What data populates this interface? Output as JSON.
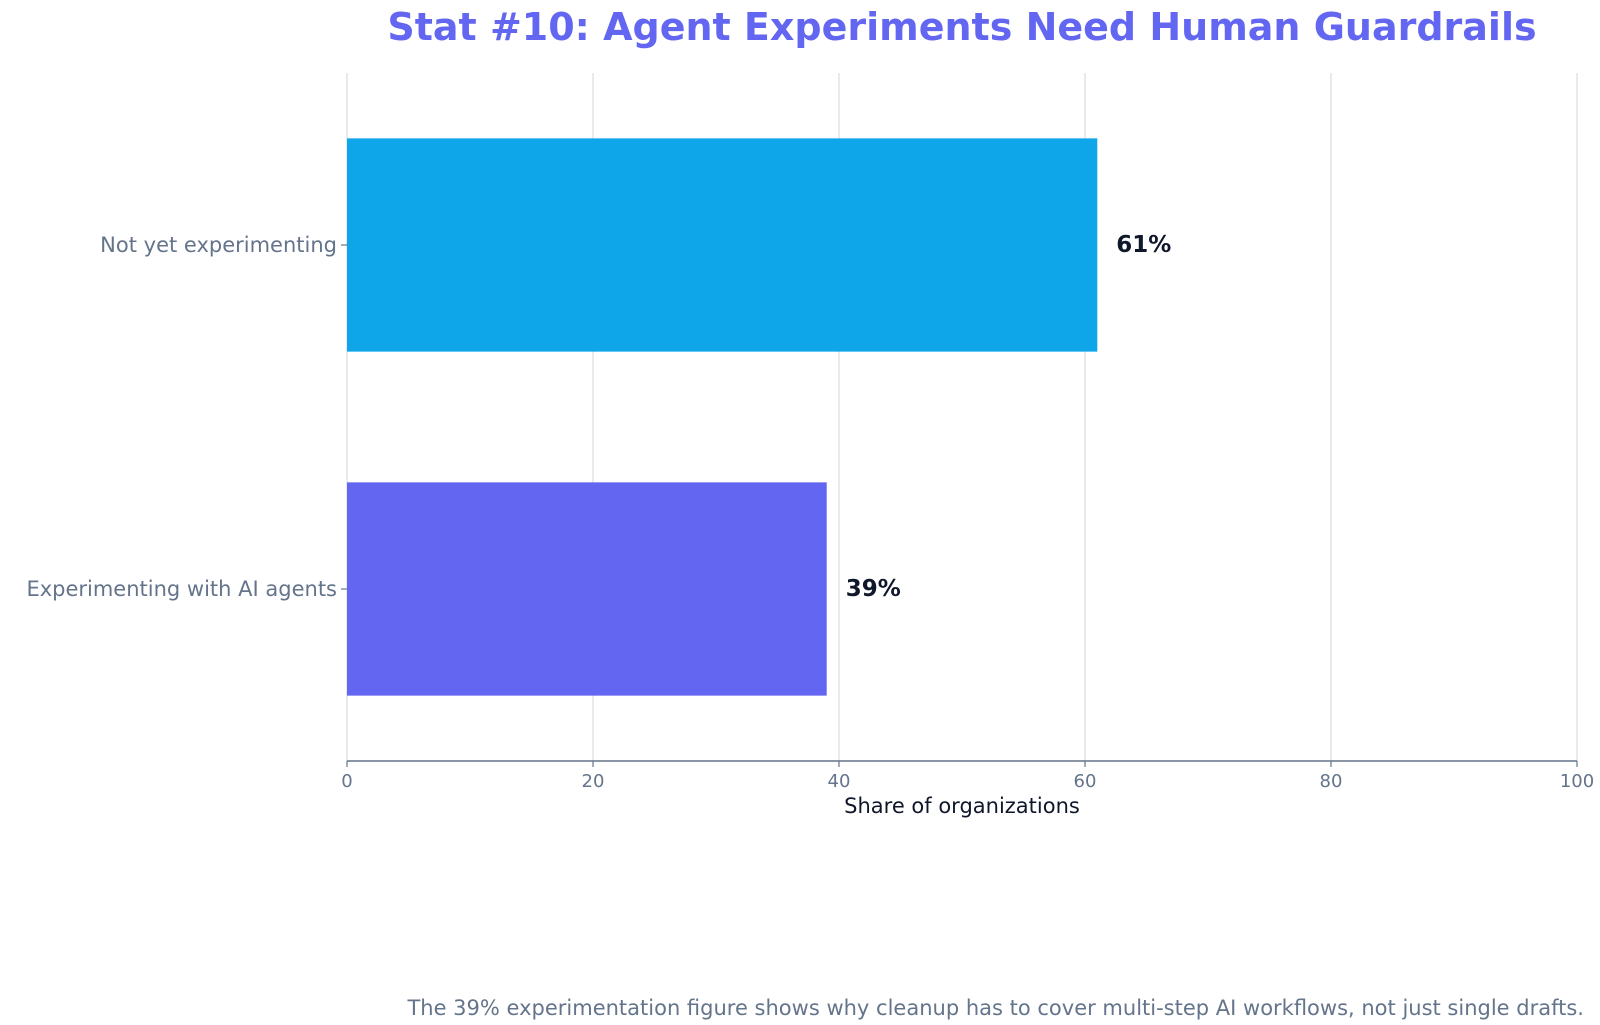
{
  "chart_data": {
    "type": "bar",
    "orientation": "horizontal",
    "title": "Stat #10: Agent Experiments Need Human Guardrails",
    "xlabel": "Share of organizations",
    "ylabel": "",
    "categories": [
      "Not yet experimenting",
      "Experimenting with AI agents"
    ],
    "values": [
      61,
      39
    ],
    "value_labels": [
      "61%",
      "39%"
    ],
    "bar_colors": [
      "#0ea5e9",
      "#6366f1"
    ],
    "xlim": [
      0,
      100
    ],
    "xticks": [
      0,
      20,
      40,
      60,
      80,
      100
    ],
    "grid": "vertical",
    "legend": "none"
  },
  "footnote": "The 39% experimentation figure shows why cleanup has to cover multi-step AI workflows, not just single drafts.",
  "colors": {
    "title": "#6366f1",
    "tick_text": "#64748b",
    "axis_text": "#0f172a",
    "gridline": "#d9dde3",
    "axis_line": "#64748b"
  }
}
